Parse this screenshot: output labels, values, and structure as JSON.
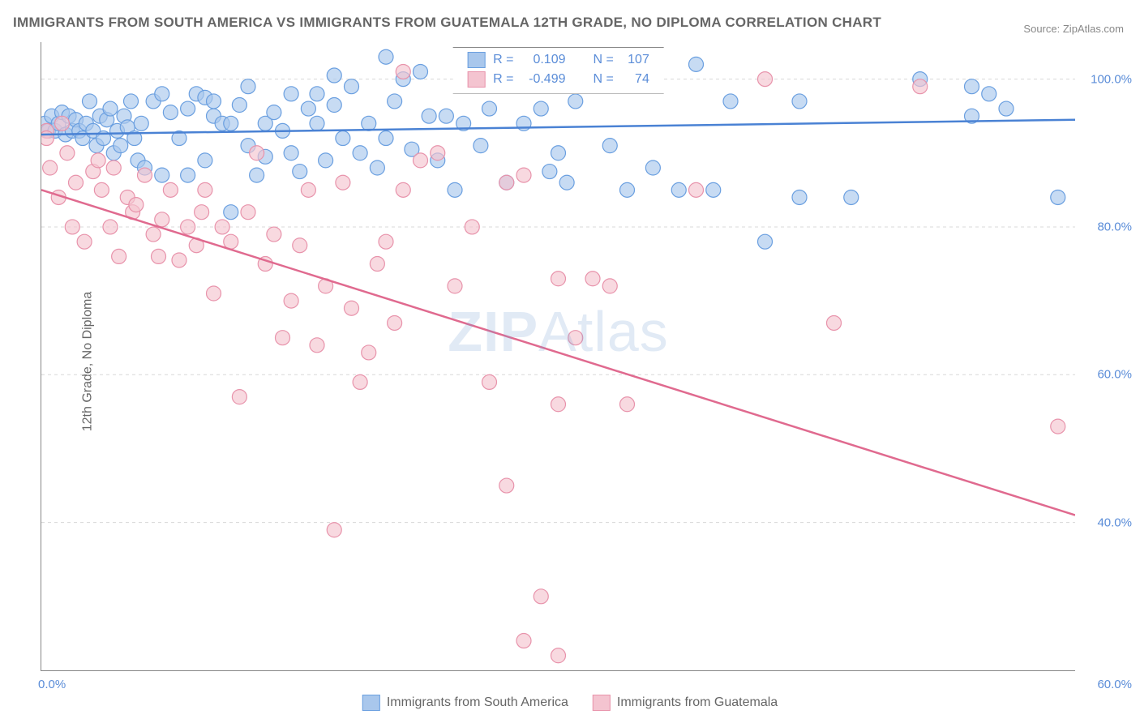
{
  "title": "IMMIGRANTS FROM SOUTH AMERICA VS IMMIGRANTS FROM GUATEMALA 12TH GRADE, NO DIPLOMA CORRELATION CHART",
  "source_label": "Source:",
  "source_link": "ZipAtlas.com",
  "y_axis_label": "12th Grade, No Diploma",
  "watermark": {
    "zip": "ZIP",
    "atlas": "Atlas"
  },
  "chart": {
    "type": "scatter",
    "background_color": "#ffffff",
    "grid_color": "#d8d8d8",
    "grid_dash": "4,4",
    "axis_color": "#888888",
    "tick_label_color": "#5b8dd8",
    "x": {
      "min": 0,
      "max": 60,
      "ticks": [
        0,
        10,
        20,
        30,
        40,
        50,
        60
      ],
      "start_label": "0.0%",
      "end_label": "60.0%"
    },
    "y": {
      "min": 20,
      "max": 105,
      "ticks": [
        40,
        60,
        80,
        100
      ],
      "labels": [
        "40.0%",
        "60.0%",
        "80.0%",
        "100.0%"
      ]
    },
    "series": [
      {
        "name": "Immigrants from South America",
        "legend_label": "Immigrants from South America",
        "fill_color": "#a9c7ec",
        "stroke_color": "#6a9fe0",
        "marker_radius": 9,
        "marker_opacity": 0.65,
        "trend": {
          "color": "#4a82d4",
          "width": 2.5,
          "y_start": 92.5,
          "y_end": 94.5
        },
        "R": "0.109",
        "N": "107",
        "points": [
          [
            0.2,
            94
          ],
          [
            0.4,
            93
          ],
          [
            0.6,
            95
          ],
          [
            0.8,
            93
          ],
          [
            1,
            94
          ],
          [
            1.2,
            95.5
          ],
          [
            1.4,
            92.5
          ],
          [
            1.6,
            95
          ],
          [
            1.8,
            93
          ],
          [
            2,
            94.5
          ],
          [
            2.2,
            93
          ],
          [
            2.4,
            92
          ],
          [
            2.6,
            94
          ],
          [
            2.8,
            97
          ],
          [
            3,
            93
          ],
          [
            3.2,
            91
          ],
          [
            3.4,
            95
          ],
          [
            3.6,
            92
          ],
          [
            3.8,
            94.5
          ],
          [
            4,
            96
          ],
          [
            4.2,
            90
          ],
          [
            4.4,
            93
          ],
          [
            4.6,
            91
          ],
          [
            4.8,
            95
          ],
          [
            5,
            93.5
          ],
          [
            5.2,
            97
          ],
          [
            5.4,
            92
          ],
          [
            5.6,
            89
          ],
          [
            5.8,
            94
          ],
          [
            6,
            88
          ],
          [
            6.5,
            97
          ],
          [
            7,
            98
          ],
          [
            7,
            87
          ],
          [
            7.5,
            95.5
          ],
          [
            8,
            92
          ],
          [
            8.5,
            87
          ],
          [
            8.5,
            96
          ],
          [
            9,
            98
          ],
          [
            9.5,
            97.5
          ],
          [
            9.5,
            89
          ],
          [
            10,
            95
          ],
          [
            10,
            97
          ],
          [
            10.5,
            94
          ],
          [
            11,
            94
          ],
          [
            11,
            82
          ],
          [
            11.5,
            96.5
          ],
          [
            12,
            99
          ],
          [
            12,
            91
          ],
          [
            12.5,
            87
          ],
          [
            13,
            94
          ],
          [
            13,
            89.5
          ],
          [
            13.5,
            95.5
          ],
          [
            14,
            93
          ],
          [
            14.5,
            98
          ],
          [
            14.5,
            90
          ],
          [
            15,
            87.5
          ],
          [
            15.5,
            96
          ],
          [
            16,
            98
          ],
          [
            16,
            94
          ],
          [
            16.5,
            89
          ],
          [
            17,
            100.5
          ],
          [
            17,
            96.5
          ],
          [
            17.5,
            92
          ],
          [
            18,
            99
          ],
          [
            18.5,
            90
          ],
          [
            19,
            94
          ],
          [
            19.5,
            88
          ],
          [
            20,
            103
          ],
          [
            20,
            92
          ],
          [
            20.5,
            97
          ],
          [
            21,
            100
          ],
          [
            21.5,
            90.5
          ],
          [
            22,
            101
          ],
          [
            22.5,
            95
          ],
          [
            23,
            89
          ],
          [
            23.5,
            95
          ],
          [
            24,
            85
          ],
          [
            24.5,
            94
          ],
          [
            25,
            100.5
          ],
          [
            25.5,
            91
          ],
          [
            26,
            96
          ],
          [
            27,
            86
          ],
          [
            28,
            94
          ],
          [
            29,
            96
          ],
          [
            29.5,
            87.5
          ],
          [
            30,
            90
          ],
          [
            30.5,
            86
          ],
          [
            31,
            97
          ],
          [
            33,
            91
          ],
          [
            33,
            102
          ],
          [
            34,
            85
          ],
          [
            35,
            102
          ],
          [
            35.5,
            88
          ],
          [
            37,
            85
          ],
          [
            40,
            97
          ],
          [
            42,
            78
          ],
          [
            44,
            84
          ],
          [
            44,
            97
          ],
          [
            47,
            84
          ],
          [
            54,
            99
          ],
          [
            54,
            95
          ],
          [
            55,
            98
          ],
          [
            56,
            96
          ],
          [
            59,
            84
          ],
          [
            51,
            100
          ],
          [
            38,
            102
          ],
          [
            39,
            85
          ]
        ]
      },
      {
        "name": "Immigrants from Guatemala",
        "legend_label": "Immigrants from Guatemala",
        "fill_color": "#f4c4d0",
        "stroke_color": "#e893ab",
        "marker_radius": 9,
        "marker_opacity": 0.65,
        "trend": {
          "color": "#e06a8f",
          "width": 2.5,
          "y_start": 85,
          "y_end": 41
        },
        "R": "-0.499",
        "N": "74",
        "points": [
          [
            0.3,
            93
          ],
          [
            0.3,
            92
          ],
          [
            0.5,
            88
          ],
          [
            1,
            84
          ],
          [
            1.2,
            94
          ],
          [
            1.5,
            90
          ],
          [
            1.8,
            80
          ],
          [
            2,
            86
          ],
          [
            2.5,
            78
          ],
          [
            3,
            87.5
          ],
          [
            3.3,
            89
          ],
          [
            3.5,
            85
          ],
          [
            4,
            80
          ],
          [
            4.2,
            88
          ],
          [
            4.5,
            76
          ],
          [
            5,
            84
          ],
          [
            5.3,
            82
          ],
          [
            5.5,
            83
          ],
          [
            6,
            87
          ],
          [
            6.5,
            79
          ],
          [
            6.8,
            76
          ],
          [
            7,
            81
          ],
          [
            7.5,
            85
          ],
          [
            8,
            75.5
          ],
          [
            8.5,
            80
          ],
          [
            9,
            77.5
          ],
          [
            9.3,
            82
          ],
          [
            9.5,
            85
          ],
          [
            10,
            71
          ],
          [
            10.5,
            80
          ],
          [
            11,
            78
          ],
          [
            11.5,
            57
          ],
          [
            12,
            82
          ],
          [
            12.5,
            90
          ],
          [
            13,
            75
          ],
          [
            13.5,
            79
          ],
          [
            14,
            65
          ],
          [
            14.5,
            70
          ],
          [
            15,
            77.5
          ],
          [
            15.5,
            85
          ],
          [
            16,
            64
          ],
          [
            16.5,
            72
          ],
          [
            17,
            39
          ],
          [
            17.5,
            86
          ],
          [
            18,
            69
          ],
          [
            18.5,
            59
          ],
          [
            19,
            63
          ],
          [
            19.5,
            75
          ],
          [
            20,
            78
          ],
          [
            20.5,
            67
          ],
          [
            21,
            101
          ],
          [
            21,
            85
          ],
          [
            22,
            89
          ],
          [
            23,
            90
          ],
          [
            24,
            72
          ],
          [
            25,
            80
          ],
          [
            26,
            59
          ],
          [
            27,
            86
          ],
          [
            27,
            45
          ],
          [
            28,
            87
          ],
          [
            28,
            24
          ],
          [
            29,
            30
          ],
          [
            30,
            73
          ],
          [
            30,
            56
          ],
          [
            30,
            22
          ],
          [
            31,
            65
          ],
          [
            32,
            73
          ],
          [
            33,
            72
          ],
          [
            34,
            56
          ],
          [
            38,
            85
          ],
          [
            42,
            100
          ],
          [
            46,
            67
          ],
          [
            51,
            99
          ],
          [
            59,
            53
          ]
        ]
      }
    ]
  },
  "top_legend": {
    "R_label": "R =",
    "N_label": "N ="
  }
}
